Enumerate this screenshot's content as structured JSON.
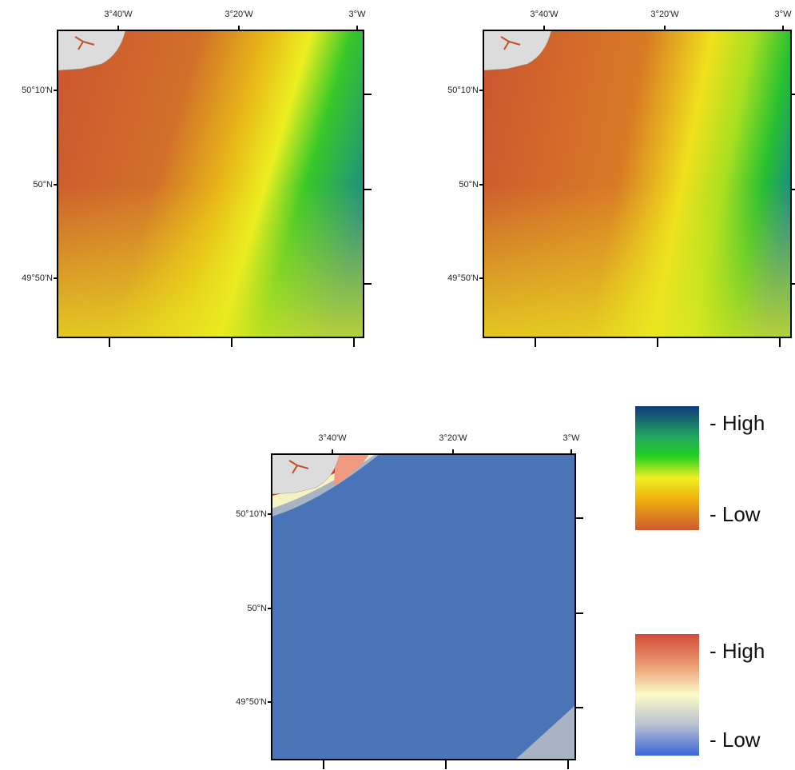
{
  "panels": [
    {
      "x_labels": [
        "3°40'W",
        "3°20'W",
        "3°W"
      ],
      "y_labels": [
        "50°10'N",
        "50°N",
        "49°50'N"
      ]
    },
    {
      "x_labels": [
        "3°40'W",
        "3°20'W",
        "3°W"
      ],
      "y_labels": [
        "50°10'N",
        "50°N",
        "49°50'N"
      ]
    },
    {
      "x_labels": [
        "3°40'W",
        "3°20'W",
        "3°W"
      ],
      "y_labels": [
        "50°10'N",
        "50°N",
        "49°50'N"
      ]
    }
  ],
  "legends": [
    {
      "high": "- High",
      "low": "- Low"
    },
    {
      "high": "- High",
      "low": "- Low"
    }
  ]
}
